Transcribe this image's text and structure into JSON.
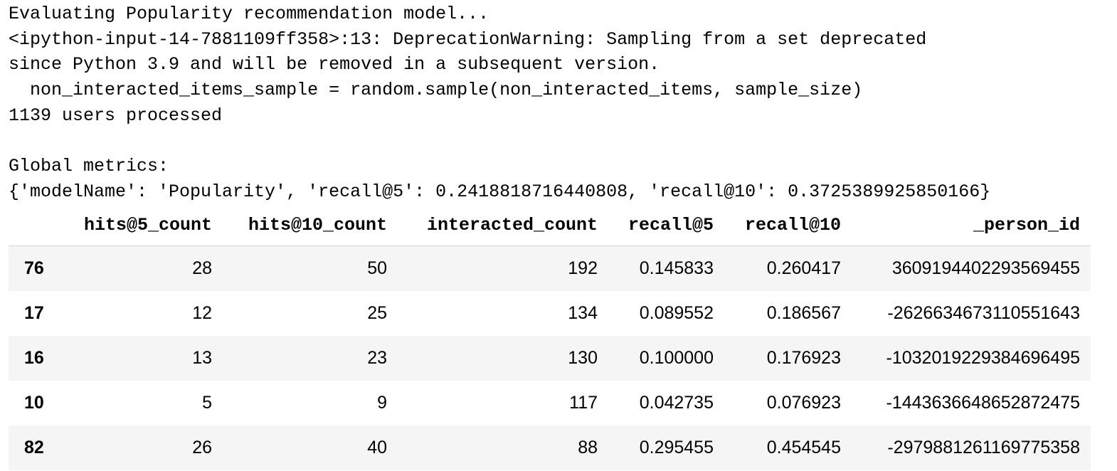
{
  "stdout_lines": [
    "Evaluating Popularity recommendation model...",
    "<ipython-input-14-7881109ff358>:13: DeprecationWarning: Sampling from a set deprecated",
    "since Python 3.9 and will be removed in a subsequent version.",
    "  non_interacted_items_sample = random.sample(non_interacted_items, sample_size)",
    "1139 users processed",
    "",
    "Global metrics:",
    "{'modelName': 'Popularity', 'recall@5': 0.2418818716440808, 'recall@10': 0.3725389925850166}"
  ],
  "dataframe": {
    "columns": [
      "",
      "hits@5_count",
      "hits@10_count",
      "interacted_count",
      "recall@5",
      "recall@10",
      "_person_id"
    ],
    "rows": [
      {
        "index": "76",
        "cells": [
          "28",
          "50",
          "192",
          "0.145833",
          "0.260417",
          "3609194402293569455"
        ]
      },
      {
        "index": "17",
        "cells": [
          "12",
          "25",
          "134",
          "0.089552",
          "0.186567",
          "-2626634673110551643"
        ]
      },
      {
        "index": "16",
        "cells": [
          "13",
          "23",
          "130",
          "0.100000",
          "0.176923",
          "-1032019229384696495"
        ]
      },
      {
        "index": "10",
        "cells": [
          "5",
          "9",
          "117",
          "0.042735",
          "0.076923",
          "-1443636648652872475"
        ]
      },
      {
        "index": "82",
        "cells": [
          "26",
          "40",
          "88",
          "0.295455",
          "0.454545",
          "-2979881261169775358"
        ]
      }
    ]
  }
}
